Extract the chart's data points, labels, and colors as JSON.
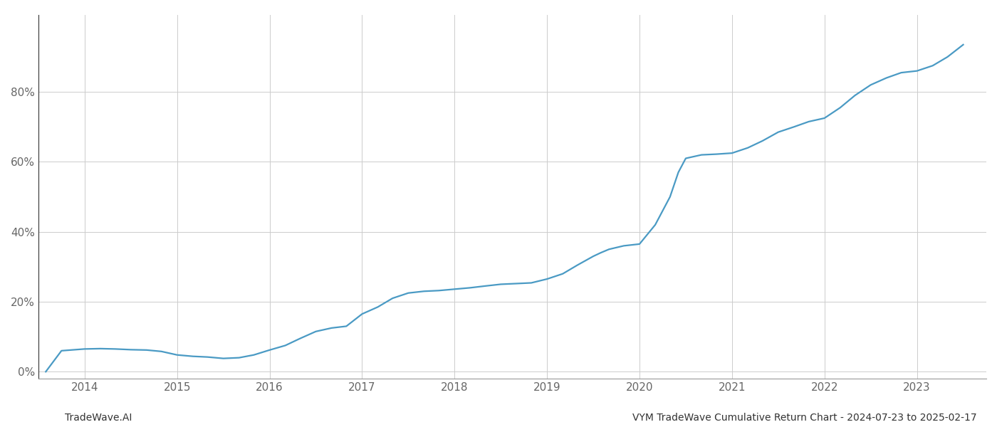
{
  "title": "VYM TradeWave Cumulative Return Chart - 2024-07-23 to 2025-02-17",
  "watermark": "TradeWave.AI",
  "line_color": "#4a9ac4",
  "background_color": "#ffffff",
  "grid_color": "#cccccc",
  "x_years": [
    2014,
    2015,
    2016,
    2017,
    2018,
    2019,
    2020,
    2021,
    2022,
    2023
  ],
  "data_x": [
    2013.58,
    2013.75,
    2014.0,
    2014.17,
    2014.33,
    2014.5,
    2014.67,
    2014.83,
    2015.0,
    2015.17,
    2015.33,
    2015.5,
    2015.67,
    2015.83,
    2016.0,
    2016.17,
    2016.33,
    2016.5,
    2016.67,
    2016.83,
    2017.0,
    2017.17,
    2017.33,
    2017.5,
    2017.67,
    2017.83,
    2018.0,
    2018.17,
    2018.33,
    2018.5,
    2018.67,
    2018.83,
    2019.0,
    2019.17,
    2019.33,
    2019.5,
    2019.58,
    2019.67,
    2019.75,
    2019.83,
    2020.0,
    2020.17,
    2020.33,
    2020.42,
    2020.5,
    2020.67,
    2020.83,
    2021.0,
    2021.17,
    2021.33,
    2021.5,
    2021.67,
    2021.83,
    2022.0,
    2022.17,
    2022.33,
    2022.5,
    2022.67,
    2022.83,
    2023.0,
    2023.17,
    2023.33,
    2023.5
  ],
  "data_y": [
    0.0,
    0.06,
    0.065,
    0.066,
    0.065,
    0.063,
    0.062,
    0.058,
    0.048,
    0.044,
    0.042,
    0.038,
    0.04,
    0.048,
    0.062,
    0.075,
    0.095,
    0.115,
    0.125,
    0.13,
    0.165,
    0.185,
    0.21,
    0.225,
    0.23,
    0.232,
    0.236,
    0.24,
    0.245,
    0.25,
    0.252,
    0.254,
    0.265,
    0.28,
    0.305,
    0.33,
    0.34,
    0.35,
    0.355,
    0.36,
    0.365,
    0.42,
    0.5,
    0.57,
    0.61,
    0.62,
    0.622,
    0.625,
    0.64,
    0.66,
    0.685,
    0.7,
    0.715,
    0.725,
    0.755,
    0.79,
    0.82,
    0.84,
    0.855,
    0.86,
    0.875,
    0.9,
    0.935
  ],
  "ylim": [
    -0.02,
    1.02
  ],
  "xlim": [
    2013.5,
    2023.75
  ],
  "yticks": [
    0.0,
    0.2,
    0.4,
    0.6,
    0.8
  ],
  "ytick_labels": [
    "0%",
    "20%",
    "40%",
    "60%",
    "80%"
  ],
  "line_width": 1.6,
  "title_fontsize": 10,
  "watermark_fontsize": 10,
  "axis_fontsize": 11
}
